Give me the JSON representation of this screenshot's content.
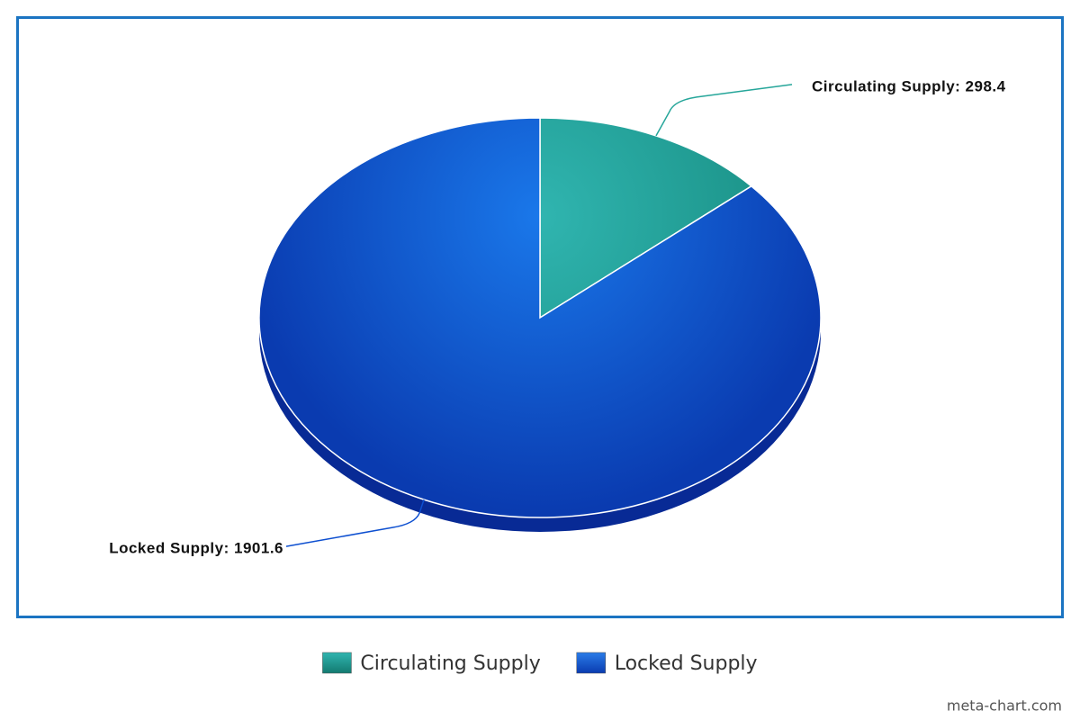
{
  "chart_data": {
    "type": "pie",
    "categories": [
      "Circulating Supply",
      "Locked Supply"
    ],
    "values": [
      298.4,
      1901.6
    ],
    "value_labels": [
      "Circulating Supply: 298.4",
      "Locked Supply: 1901.6"
    ],
    "colors": [
      "#26a69a",
      "#0d4fd0"
    ],
    "legend": "bottom",
    "watermark": "meta-chart.com"
  }
}
